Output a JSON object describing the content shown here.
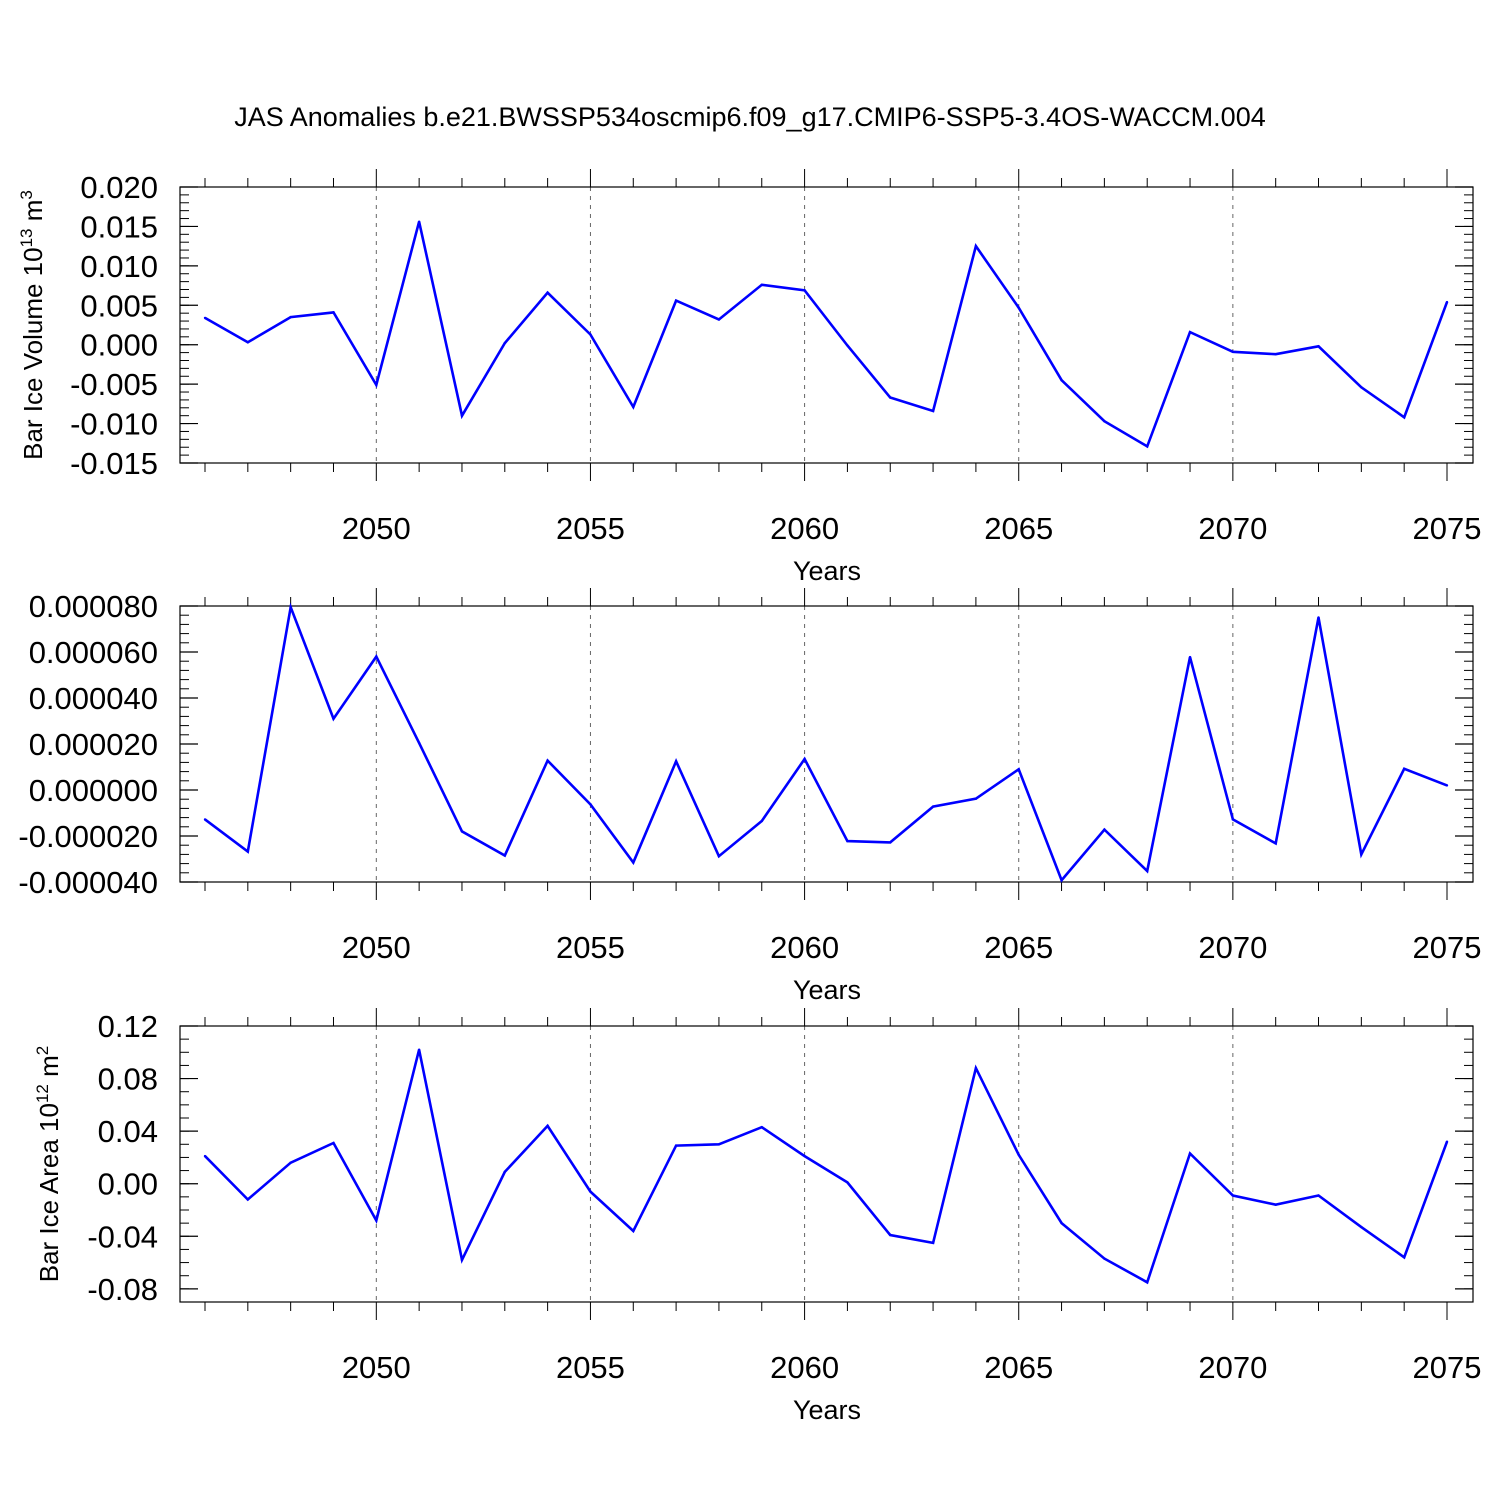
{
  "figure": {
    "title": "JAS Anomalies b.e21.BWSSP534oscmip6.f09_g17.CMIP6-SSP5-3.4OS-WACCM.004",
    "line_color": "#0000ff",
    "grid_color": "#666666",
    "axis_color": "#000000"
  },
  "chart_data": [
    {
      "type": "line",
      "title": "",
      "xlabel": "Years",
      "ylabel_main": "Bar Ice Volume 10",
      "ylabel_sup": "13",
      "ylabel_unit": " m",
      "ylabel_unit_sup": "3",
      "xlim": [
        2046,
        2075
      ],
      "ylim": [
        -0.015,
        0.02
      ],
      "x_ticks": [
        2050,
        2055,
        2060,
        2065,
        2070,
        2075
      ],
      "x_tick_labels": [
        "2050",
        "2055",
        "2060",
        "2065",
        "2070",
        "2075"
      ],
      "y_ticks": [
        -0.015,
        -0.01,
        -0.005,
        0.0,
        0.005,
        0.01,
        0.015,
        0.02
      ],
      "y_tick_labels": [
        "-0.015",
        "-0.010",
        "-0.005",
        "0.000",
        "0.005",
        "0.010",
        "0.015",
        "0.020"
      ],
      "y_minor_step": 0.001,
      "x": [
        2046,
        2047,
        2048,
        2049,
        2050,
        2051,
        2052,
        2053,
        2054,
        2055,
        2056,
        2057,
        2058,
        2059,
        2060,
        2061,
        2062,
        2063,
        2064,
        2065,
        2066,
        2067,
        2068,
        2069,
        2070,
        2071,
        2072,
        2073,
        2074,
        2075
      ],
      "values": [
        0.0034,
        0.0003,
        0.0035,
        0.0041,
        -0.0051,
        0.0156,
        -0.009,
        0.0002,
        0.0066,
        0.0013,
        -0.0079,
        0.0056,
        0.0032,
        0.0076,
        0.0069,
        -0.0001,
        -0.0067,
        -0.0084,
        0.0125,
        0.0047,
        -0.0045,
        -0.0097,
        -0.0129,
        0.0016,
        -0.0009,
        -0.0012,
        -0.0002,
        -0.0054,
        -0.0092,
        0.0054
      ]
    },
    {
      "type": "line",
      "title": "",
      "xlabel": "Years",
      "ylabel_main": "",
      "ylabel_sup": "",
      "ylabel_unit": "",
      "ylabel_unit_sup": "",
      "xlim": [
        2046,
        2075
      ],
      "ylim": [
        -4e-05,
        8e-05
      ],
      "x_ticks": [
        2050,
        2055,
        2060,
        2065,
        2070,
        2075
      ],
      "x_tick_labels": [
        "2050",
        "2055",
        "2060",
        "2065",
        "2070",
        "2075"
      ],
      "y_ticks": [
        -4e-05,
        -2e-05,
        0.0,
        2e-05,
        4e-05,
        6e-05,
        8e-05
      ],
      "y_tick_labels": [
        "-0.000040",
        "-0.000020",
        "0.000000",
        "0.000020",
        "0.000040",
        "0.000060",
        "0.000080"
      ],
      "y_minor_step": 4e-06,
      "x": [
        2046,
        2047,
        2048,
        2049,
        2050,
        2051,
        2052,
        2053,
        2054,
        2055,
        2056,
        2057,
        2058,
        2059,
        2060,
        2061,
        2062,
        2063,
        2064,
        2065,
        2066,
        2067,
        2068,
        2069,
        2070,
        2071,
        2072,
        2073,
        2074,
        2075
      ],
      "values": [
        -1.28e-05,
        -2.68e-05,
        7.95e-05,
        3.1e-05,
        5.8e-05,
        2.05e-05,
        -1.8e-05,
        -2.85e-05,
        1.28e-05,
        -6.2e-06,
        -3.15e-05,
        1.25e-05,
        -2.88e-05,
        -1.35e-05,
        1.35e-05,
        -2.22e-05,
        -2.28e-05,
        -7.2e-06,
        -3.8e-06,
        9e-06,
        -3.92e-05,
        -1.72e-05,
        -3.52e-05,
        5.78e-05,
        -1.28e-05,
        -2.32e-05,
        7.5e-05,
        -2.8e-05,
        9.2e-06,
        2e-06
      ]
    },
    {
      "type": "line",
      "title": "",
      "xlabel": "Years",
      "ylabel_main": "Bar Ice Area 10",
      "ylabel_sup": "12",
      "ylabel_unit": " m",
      "ylabel_unit_sup": "2",
      "xlim": [
        2046,
        2075
      ],
      "ylim": [
        -0.09,
        0.12
      ],
      "x_ticks": [
        2050,
        2055,
        2060,
        2065,
        2070,
        2075
      ],
      "x_tick_labels": [
        "2050",
        "2055",
        "2060",
        "2065",
        "2070",
        "2075"
      ],
      "y_ticks": [
        -0.08,
        -0.04,
        0.0,
        0.04,
        0.08,
        0.12
      ],
      "y_tick_labels": [
        "-0.08",
        "-0.04",
        "0.00",
        "0.04",
        "0.08",
        "0.12"
      ],
      "y_minor_step": 0.01,
      "x": [
        2046,
        2047,
        2048,
        2049,
        2050,
        2051,
        2052,
        2053,
        2054,
        2055,
        2056,
        2057,
        2058,
        2059,
        2060,
        2061,
        2062,
        2063,
        2064,
        2065,
        2066,
        2067,
        2068,
        2069,
        2070,
        2071,
        2072,
        2073,
        2074,
        2075
      ],
      "values": [
        0.021,
        -0.012,
        0.016,
        0.031,
        -0.028,
        0.102,
        -0.058,
        0.009,
        0.044,
        -0.006,
        -0.036,
        0.029,
        0.03,
        0.043,
        0.021,
        0.001,
        -0.039,
        -0.045,
        0.088,
        0.022,
        -0.03,
        -0.057,
        -0.075,
        0.023,
        -0.009,
        -0.016,
        -0.009,
        -0.033,
        -0.056,
        0.032
      ]
    }
  ]
}
